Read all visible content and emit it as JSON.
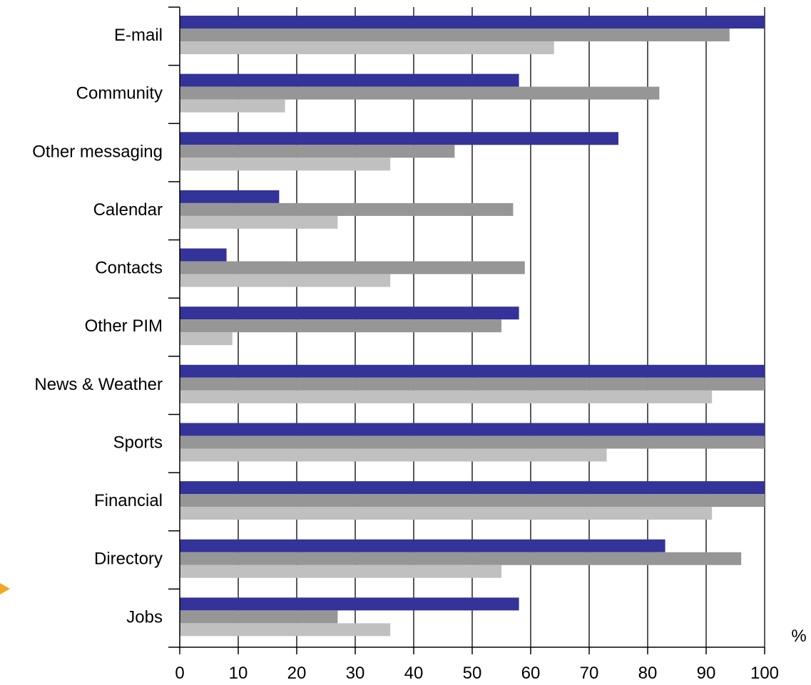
{
  "chart_data": {
    "type": "bar",
    "orientation": "horizontal",
    "title": "",
    "xlabel": "",
    "ylabel": "",
    "unit": "%",
    "xlim": [
      0,
      100
    ],
    "xticks": [
      0,
      10,
      20,
      30,
      40,
      50,
      60,
      70,
      80,
      90,
      100
    ],
    "grid": "vertical major gridlines",
    "legend": "none",
    "categories": [
      "E-mail",
      "Community",
      "Other messaging",
      "Calendar",
      "Contacts",
      "Other PIM",
      "News & Weather",
      "Sports",
      "Financial",
      "Directory",
      "Jobs"
    ],
    "series": [
      {
        "color": "#333399",
        "values": [
          100,
          58,
          75,
          17,
          8,
          58,
          100,
          100,
          100,
          83,
          58
        ]
      },
      {
        "color": "#969696",
        "values": [
          94,
          82,
          47,
          57,
          59,
          55,
          100,
          100,
          100,
          96,
          27
        ]
      },
      {
        "color": "#c0c0c0",
        "values": [
          64,
          18,
          36,
          27,
          36,
          9,
          91,
          73,
          91,
          55,
          36
        ]
      }
    ],
    "marker_color": "#f5a623"
  }
}
